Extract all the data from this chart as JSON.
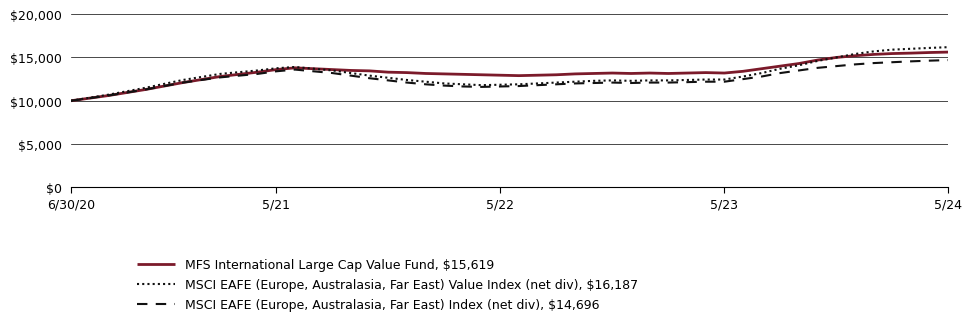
{
  "title": "",
  "x_labels": [
    "6/30/20",
    "5/21",
    "5/22",
    "5/23",
    "5/24"
  ],
  "ylim": [
    0,
    20000
  ],
  "yticks": [
    0,
    5000,
    10000,
    15000,
    20000
  ],
  "ytick_labels": [
    "$0",
    "$5,000",
    "$10,000",
    "$15,000",
    "$20,000"
  ],
  "series": [
    {
      "label": "MFS International Large Cap Value Fund, $15,619",
      "color": "#7B1A2A",
      "linewidth": 2.0,
      "linestyle": "solid",
      "x": [
        0,
        1,
        2,
        3,
        4,
        5,
        6,
        7,
        8,
        9,
        10,
        11,
        12,
        13,
        14,
        15,
        16,
        17,
        18,
        19,
        20,
        21,
        22,
        23,
        24,
        25,
        26,
        27,
        28,
        29,
        30,
        31,
        32,
        33,
        34,
        35,
        36,
        37,
        38,
        39,
        40,
        41,
        42,
        43,
        44,
        45,
        46,
        47
      ],
      "y": [
        10000,
        10300,
        10600,
        10950,
        11300,
        11700,
        12100,
        12450,
        12800,
        13050,
        13300,
        13600,
        13800,
        13700,
        13600,
        13500,
        13450,
        13300,
        13250,
        13150,
        13100,
        13050,
        13000,
        12950,
        12900,
        12950,
        13000,
        13100,
        13150,
        13200,
        13150,
        13200,
        13150,
        13200,
        13250,
        13200,
        13400,
        13700,
        14000,
        14300,
        14700,
        15000,
        15200,
        15350,
        15450,
        15500,
        15570,
        15619
      ]
    },
    {
      "label": "MSCI EAFE (Europe, Australasia, Far East) Value Index (net div), $16,187",
      "color": "#111111",
      "linewidth": 1.5,
      "linestyle": "dotted",
      "x": [
        0,
        1,
        2,
        3,
        4,
        5,
        6,
        7,
        8,
        9,
        10,
        11,
        12,
        13,
        14,
        15,
        16,
        17,
        18,
        19,
        20,
        21,
        22,
        23,
        24,
        25,
        26,
        27,
        28,
        29,
        30,
        31,
        32,
        33,
        34,
        35,
        36,
        37,
        38,
        39,
        40,
        41,
        42,
        43,
        44,
        45,
        46,
        47
      ],
      "y": [
        10000,
        10350,
        10700,
        11100,
        11500,
        11950,
        12400,
        12750,
        13100,
        13300,
        13500,
        13750,
        13900,
        13700,
        13500,
        13200,
        12900,
        12650,
        12400,
        12200,
        12000,
        11900,
        11800,
        11850,
        11900,
        12000,
        12100,
        12200,
        12300,
        12350,
        12300,
        12350,
        12350,
        12400,
        12450,
        12450,
        12800,
        13200,
        13700,
        14100,
        14600,
        15000,
        15400,
        15700,
        15900,
        16000,
        16100,
        16187
      ]
    },
    {
      "label": "MSCI EAFE (Europe, Australasia, Far East) Index (net div), $14,696",
      "color": "#111111",
      "linewidth": 1.5,
      "linestyle": "dashed",
      "x": [
        0,
        1,
        2,
        3,
        4,
        5,
        6,
        7,
        8,
        9,
        10,
        11,
        12,
        13,
        14,
        15,
        16,
        17,
        18,
        19,
        20,
        21,
        22,
        23,
        24,
        25,
        26,
        27,
        28,
        29,
        30,
        31,
        32,
        33,
        34,
        35,
        36,
        37,
        38,
        39,
        40,
        41,
        42,
        43,
        44,
        45,
        46,
        47
      ],
      "y": [
        10000,
        10300,
        10600,
        10950,
        11300,
        11700,
        12100,
        12400,
        12700,
        12900,
        13100,
        13400,
        13600,
        13400,
        13200,
        12900,
        12600,
        12350,
        12100,
        11900,
        11750,
        11650,
        11600,
        11650,
        11700,
        11800,
        11900,
        12000,
        12050,
        12100,
        12050,
        12100,
        12100,
        12150,
        12200,
        12200,
        12500,
        12800,
        13200,
        13500,
        13800,
        14000,
        14200,
        14350,
        14450,
        14550,
        14630,
        14696
      ]
    }
  ],
  "background_color": "#ffffff",
  "grid_color": "#000000",
  "tick_fontsize": 9,
  "legend_fontsize": 9,
  "xtick_positions": [
    0,
    11,
    23,
    35,
    47
  ]
}
